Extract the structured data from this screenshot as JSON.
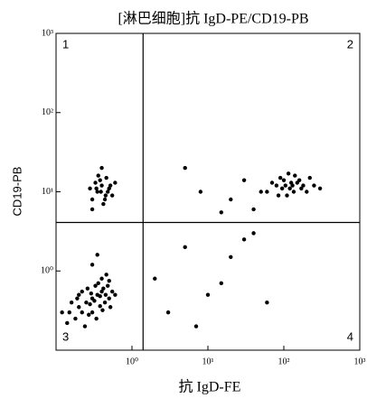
{
  "chart_data": {
    "type": "scatter",
    "title": "[淋巴细胞]抗 IgD-PE/CD19-PB",
    "x_label": "抗 IgD-FE",
    "y_label": "CD19-PB",
    "x_scale": "log",
    "y_scale": "log",
    "xlim": [
      0.1,
      1000
    ],
    "ylim": [
      0.1,
      1000
    ],
    "xticks": [
      {
        "value": 1,
        "label": "10⁰"
      },
      {
        "value": 10,
        "label": "10¹"
      },
      {
        "value": 100,
        "label": "10²"
      },
      {
        "value": 1000,
        "label": "10³"
      }
    ],
    "yticks": [
      {
        "value": 1,
        "label": "10⁰"
      },
      {
        "value": 10,
        "label": "10¹"
      },
      {
        "value": 100,
        "label": "10²"
      },
      {
        "value": 1000,
        "label": "10³"
      }
    ],
    "quadrant_gate": {
      "x": 1.4,
      "y": 4.1
    },
    "quadrant_labels": [
      "1",
      "2",
      "3",
      "4"
    ],
    "color": "#000000",
    "x": [
      0.15,
      0.2,
      0.25,
      0.3,
      0.35,
      0.4,
      0.45,
      0.5,
      0.18,
      0.22,
      0.28,
      0.32,
      0.38,
      0.42,
      0.48,
      0.55,
      0.12,
      0.14,
      0.16,
      0.2,
      0.26,
      0.3,
      0.36,
      0.44,
      0.52,
      0.6,
      0.24,
      0.34,
      0.4,
      0.46,
      0.3,
      0.22,
      0.27,
      0.33,
      0.38,
      0.5,
      0.19,
      0.29,
      0.41,
      0.35,
      0.3,
      0.35,
      0.4,
      0.45,
      0.5,
      0.38,
      0.42,
      0.33,
      0.48,
      0.55,
      0.28,
      0.36,
      0.44,
      0.4,
      0.52,
      0.3,
      0.46,
      0.39,
      0.34,
      0.6,
      60,
      80,
      100,
      120,
      150,
      180,
      200,
      90,
      110,
      140,
      170,
      70,
      130,
      160,
      95,
      115,
      250,
      50,
      85,
      125,
      20,
      30,
      8,
      5,
      300,
      40,
      15,
      220,
      105,
      135,
      3,
      5,
      10,
      20,
      40,
      2,
      7,
      15,
      30,
      60
    ],
    "values": [
      0.3,
      0.35,
      0.4,
      0.45,
      0.5,
      0.55,
      0.5,
      0.45,
      0.25,
      0.3,
      0.38,
      0.42,
      0.48,
      0.6,
      0.65,
      0.55,
      0.3,
      0.22,
      0.4,
      0.5,
      0.6,
      0.3,
      0.7,
      0.4,
      0.35,
      0.5,
      0.2,
      0.25,
      0.8,
      0.9,
      1.2,
      0.55,
      0.28,
      0.65,
      0.36,
      0.75,
      0.45,
      0.52,
      0.32,
      1.6,
      8,
      10,
      12,
      9,
      11,
      14,
      7,
      13,
      10,
      9,
      11,
      16,
      8,
      20,
      12,
      6,
      15,
      10,
      11,
      13,
      10,
      12,
      14,
      11,
      13,
      12,
      10,
      15,
      9,
      16,
      11,
      13,
      12,
      14,
      11,
      17,
      12,
      10,
      9,
      13,
      8,
      14,
      10,
      20,
      11,
      6,
      5.5,
      15,
      12,
      10,
      0.3,
      2,
      0.5,
      1.5,
      3,
      0.8,
      0.2,
      0.7,
      2.5,
      0.4
    ]
  }
}
